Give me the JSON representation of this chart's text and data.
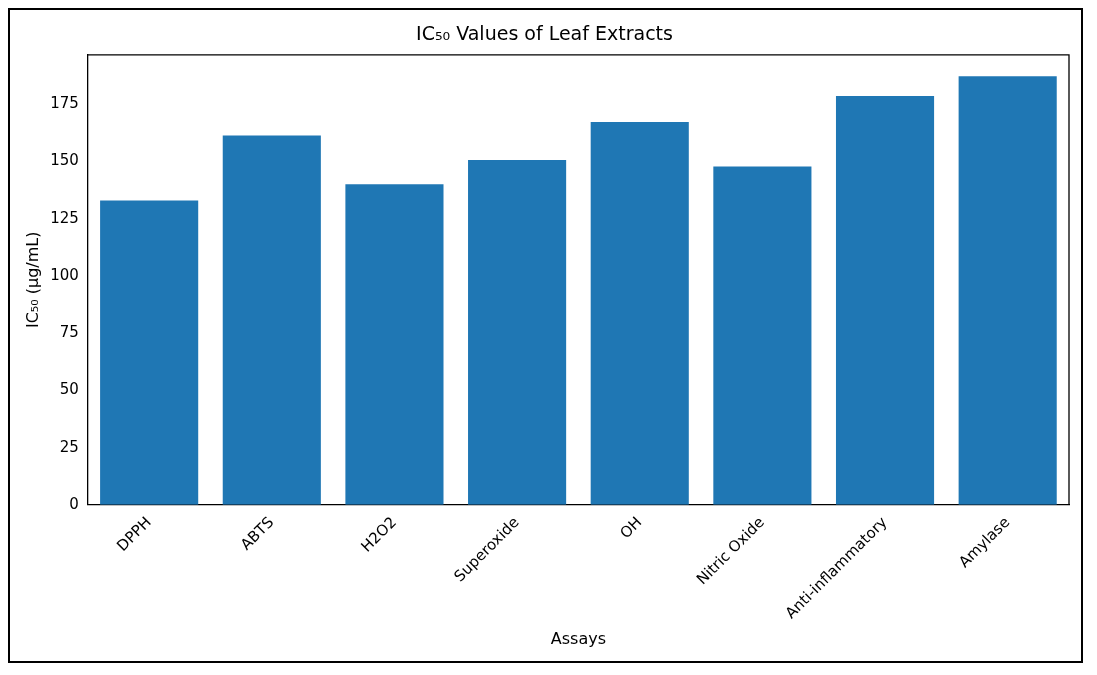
{
  "chart_data": {
    "type": "bar",
    "title": "IC₅₀ Values of Leaf Extracts",
    "xlabel": "Assays",
    "ylabel": "IC₅₀ (µg/mL)",
    "categories": [
      "DPPH",
      "ABTS",
      "H2O2",
      "Superoxide",
      "OH",
      "Nitric Oxide",
      "Anti-inflammatory",
      "Amylase"
    ],
    "values": [
      133,
      161.4,
      140,
      150.7,
      167.2,
      147.8,
      178.6,
      187.2
    ],
    "color": "#1f77b4",
    "ylim": [
      0,
      196.6
    ],
    "yticks": [
      0,
      25,
      50,
      75,
      100,
      125,
      150,
      175
    ],
    "grid": false,
    "legend": false
  }
}
